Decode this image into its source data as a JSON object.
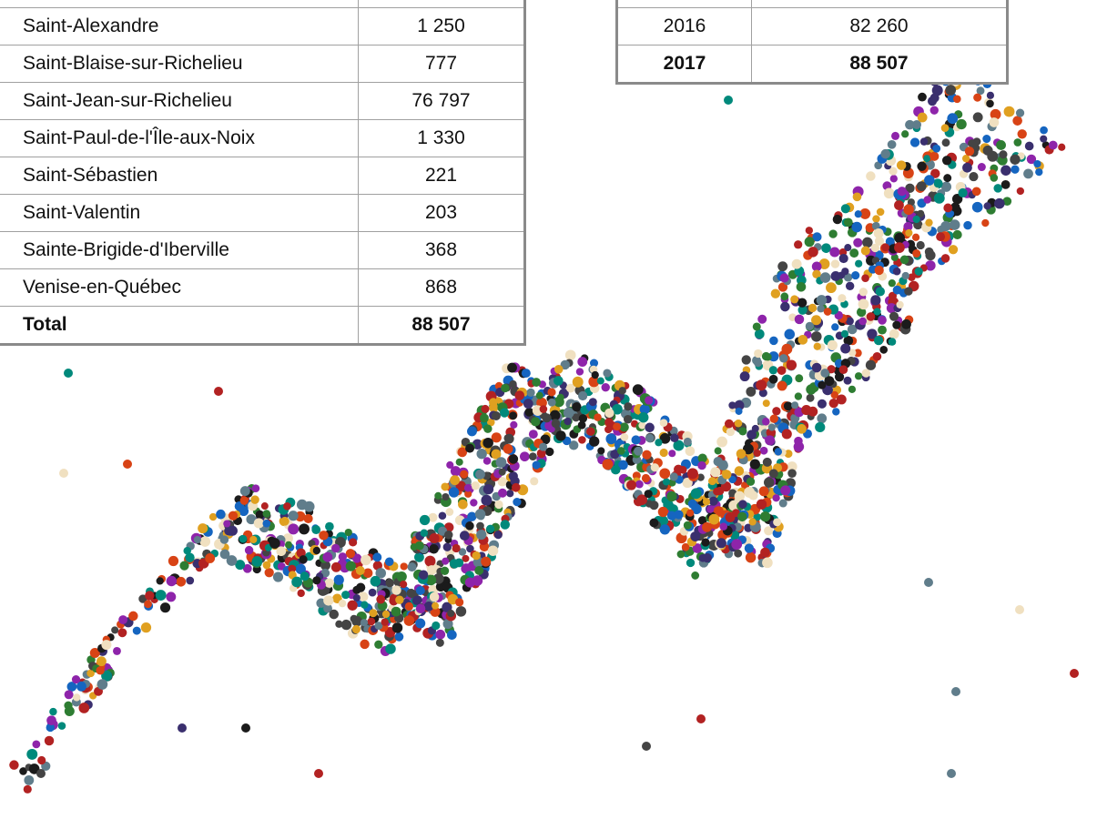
{
  "left_table": {
    "rows": [
      [
        "Saint-Alexandre",
        "1 250"
      ],
      [
        "Saint-Blaise-sur-Richelieu",
        "777"
      ],
      [
        "Saint-Jean-sur-Richelieu",
        "76 797"
      ],
      [
        "Saint-Paul-de-l'Île-aux-Noix",
        "1 330"
      ],
      [
        "Saint-Sébastien",
        "221"
      ],
      [
        "Saint-Valentin",
        "203"
      ],
      [
        "Sainte-Brigide-d'Iberville",
        "368"
      ],
      [
        "Venise-en-Québec",
        "868"
      ]
    ],
    "total": [
      "Total",
      "88 507"
    ]
  },
  "right_table": {
    "rows": [
      [
        "2016",
        "82 260"
      ]
    ],
    "total": [
      "2017",
      "88 507"
    ]
  }
}
